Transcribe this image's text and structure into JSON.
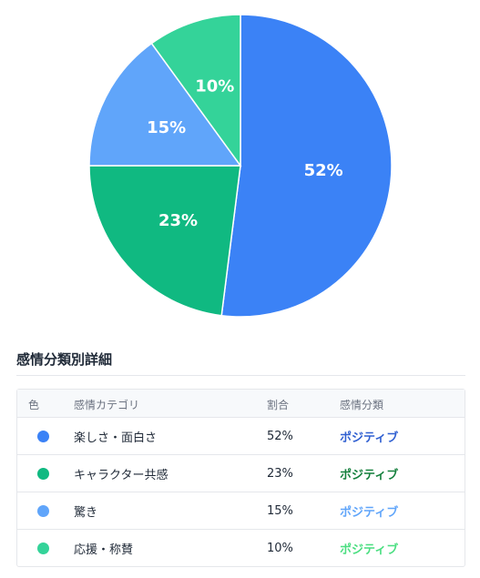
{
  "chart_data": {
    "type": "pie",
    "slices": [
      {
        "label": "楽しさ・面白さ",
        "value": 52,
        "color": "#3b82f6"
      },
      {
        "label": "キャラクター共感",
        "value": 23,
        "color": "#10b981"
      },
      {
        "label": "驚き",
        "value": 15,
        "color": "#60a5fa"
      },
      {
        "label": "応援・称賛",
        "value": 10,
        "color": "#34d399"
      }
    ]
  },
  "section": {
    "title": "感情分類別詳細"
  },
  "table": {
    "headers": {
      "color": "色",
      "category": "感情カテゴリ",
      "ratio": "割合",
      "classification": "感情分類"
    },
    "rows": [
      {
        "category": "楽しさ・面白さ",
        "ratio": "52%",
        "classification": "ポジティブ",
        "dot_color": "#3b82f6",
        "class_color": "#2f5fd1"
      },
      {
        "category": "キャラクター共感",
        "ratio": "23%",
        "classification": "ポジティブ",
        "dot_color": "#10b981",
        "class_color": "#15803d"
      },
      {
        "category": "驚き",
        "ratio": "15%",
        "classification": "ポジティブ",
        "dot_color": "#60a5fa",
        "class_color": "#60a5fa"
      },
      {
        "category": "応援・称賛",
        "ratio": "10%",
        "classification": "ポジティブ",
        "dot_color": "#34d399",
        "class_color": "#4ade80"
      }
    ]
  }
}
